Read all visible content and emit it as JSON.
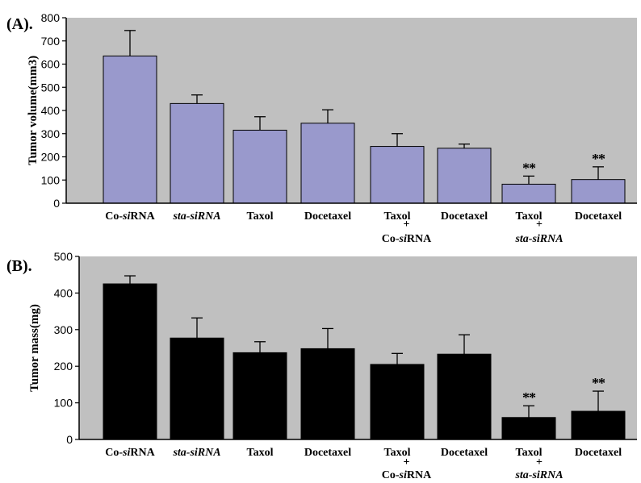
{
  "chart_data": [
    {
      "panel_label": "(A).",
      "type": "bar",
      "ylabel": "Tumor volume(mm3)",
      "ylim": [
        0,
        800
      ],
      "yticks": [
        "0",
        "100",
        "200",
        "300",
        "400",
        "500",
        "600",
        "700",
        "800"
      ],
      "plot_background": "#c0c0c0",
      "bar_color": "#9999cc",
      "categories": [
        {
          "line1": "Co-siRNA",
          "line2": ""
        },
        {
          "line1": "sta-siRNA",
          "line2": ""
        },
        {
          "line1": "Taxol",
          "line2": ""
        },
        {
          "line1": "Docetaxel",
          "line2": ""
        },
        {
          "line1": "Taxol",
          "line2": "Co-siRNA"
        },
        {
          "line1": "Docetaxel",
          "line2": ""
        },
        {
          "line1": "Taxol",
          "line2": "sta-siRNA"
        },
        {
          "line1": "Docetaxel",
          "line2": ""
        }
      ],
      "plus_sign": "+",
      "values": [
        635,
        430,
        315,
        345,
        245,
        237,
        82,
        102
      ],
      "errors": [
        110,
        37,
        58,
        58,
        55,
        18,
        35,
        55
      ],
      "significance": [
        "",
        "",
        "",
        "",
        "",
        "",
        "**",
        "**"
      ]
    },
    {
      "panel_label": "(B).",
      "type": "bar",
      "ylabel": "Tumor mass(mg)",
      "ylim": [
        0,
        500
      ],
      "yticks": [
        "0",
        "100",
        "200",
        "300",
        "400",
        "500"
      ],
      "plot_background": "#c0c0c0",
      "bar_color": "#000000",
      "categories": [
        {
          "line1": "Co-siRNA",
          "line2": ""
        },
        {
          "line1": "sta-siRNA",
          "line2": ""
        },
        {
          "line1": "Taxol",
          "line2": ""
        },
        {
          "line1": "Docetaxel",
          "line2": ""
        },
        {
          "line1": "Taxol",
          "line2": "Co-siRNA"
        },
        {
          "line1": "Docetaxel",
          "line2": ""
        },
        {
          "line1": "Taxol",
          "line2": "sta-siRNA"
        },
        {
          "line1": "Docetaxel",
          "line2": ""
        }
      ],
      "plus_sign": "+",
      "values": [
        425,
        277,
        237,
        248,
        205,
        233,
        60,
        77
      ],
      "errors": [
        22,
        55,
        30,
        55,
        30,
        53,
        32,
        55
      ],
      "significance": [
        "",
        "",
        "",
        "",
        "",
        "",
        "**",
        "**"
      ]
    }
  ]
}
